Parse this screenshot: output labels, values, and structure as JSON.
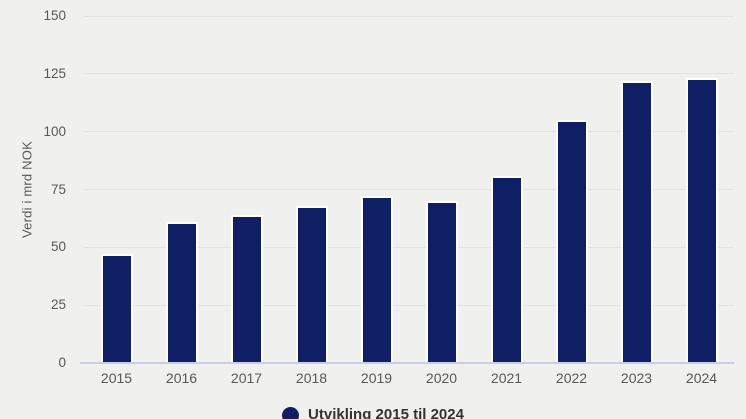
{
  "chart_data": {
    "type": "bar",
    "title": "",
    "xlabel": "",
    "ylabel": "Verdi i mrd NOK",
    "categories": [
      "2015",
      "2016",
      "2017",
      "2018",
      "2019",
      "2020",
      "2021",
      "2022",
      "2023",
      "2024"
    ],
    "values": [
      47,
      61,
      64,
      68,
      72,
      70,
      81,
      105,
      122,
      123
    ],
    "ylim": [
      0,
      150
    ],
    "yticks": [
      0,
      25,
      50,
      75,
      100,
      125,
      150
    ],
    "grid": true,
    "legend": {
      "position": "bottom-center",
      "label": "Utvikling 2015 til 2024",
      "marker": "circle"
    },
    "colors": {
      "bar_fill": "#0e2063",
      "bar_border": "#ffffff",
      "background": "#f0f0ee",
      "gridline": "#e3e3e0",
      "axis_line": "#c7cde7",
      "tick_text": "#58585a",
      "legend_text": "#333333"
    }
  }
}
